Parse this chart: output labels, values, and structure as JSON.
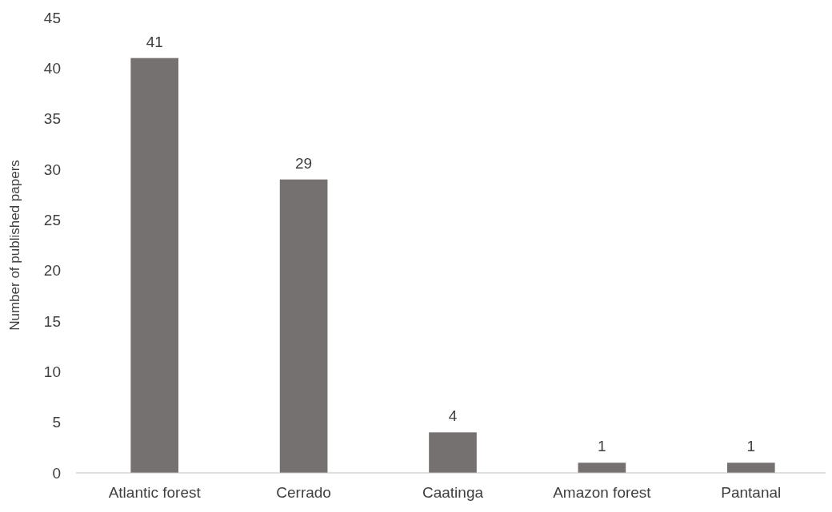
{
  "chart_data": {
    "type": "bar",
    "ylabel": "Number of published papers",
    "categories": [
      "Atlantic forest",
      "Cerrado",
      "Caatinga",
      "Amazon forest",
      "Pantanal"
    ],
    "values": [
      41,
      29,
      4,
      1,
      1
    ],
    "color": "#767171",
    "ylim": [
      0,
      45
    ],
    "yticks": [
      0,
      5,
      10,
      15,
      20,
      25,
      30,
      35,
      40,
      45
    ],
    "grid": false,
    "data_labels": true
  }
}
